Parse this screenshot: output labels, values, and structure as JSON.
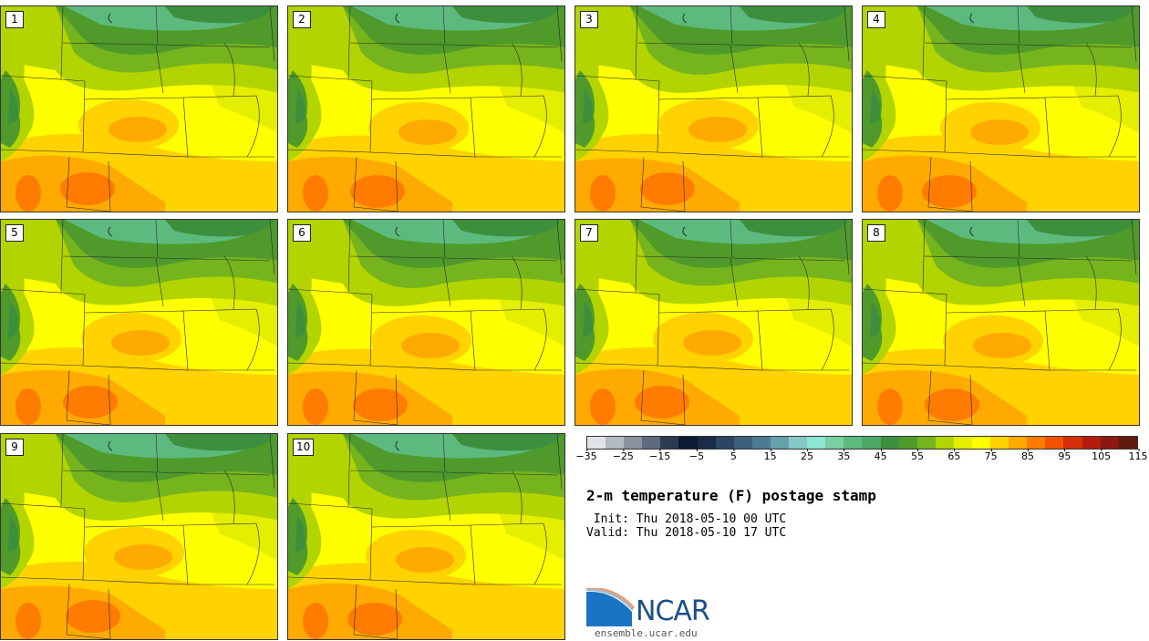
{
  "map": {
    "panels": [
      {
        "label": "1"
      },
      {
        "label": "2"
      },
      {
        "label": "3"
      },
      {
        "label": "4"
      },
      {
        "label": "5"
      },
      {
        "label": "6"
      },
      {
        "label": "7"
      },
      {
        "label": "8"
      },
      {
        "label": "9"
      },
      {
        "label": "10"
      }
    ]
  },
  "legend": {
    "colors": [
      "#dfe3e7",
      "#b4bac2",
      "#8a92a0",
      "#5e6a7e",
      "#2c3a52",
      "#0d1a33",
      "#1a2c46",
      "#2b4562",
      "#3d5f7c",
      "#4f7a93",
      "#66a1ab",
      "#84c9c8",
      "#8de5d3",
      "#79cfa0",
      "#5dba7f",
      "#4ea865",
      "#3e8f3d",
      "#4f9a2a",
      "#76b41e",
      "#b2d400",
      "#e4ee00",
      "#ffff00",
      "#ffd200",
      "#ffaa00",
      "#ff7c00",
      "#f25200",
      "#d52e0a",
      "#b41c10",
      "#8d1812",
      "#611a0f"
    ],
    "ticks": [
      "−35",
      "−25",
      "−15",
      "−5",
      "5",
      "15",
      "25",
      "35",
      "45",
      "55",
      "65",
      "75",
      "85",
      "95",
      "105",
      "115"
    ]
  },
  "title": "2-m temperature (F) postage stamp",
  "init": " Init: Thu 2018-05-10 00 UTC",
  "valid": "Valid: Thu 2018-05-10 17 UTC",
  "logo": {
    "text": "NCAR",
    "url": "ensemble.ucar.edu"
  }
}
